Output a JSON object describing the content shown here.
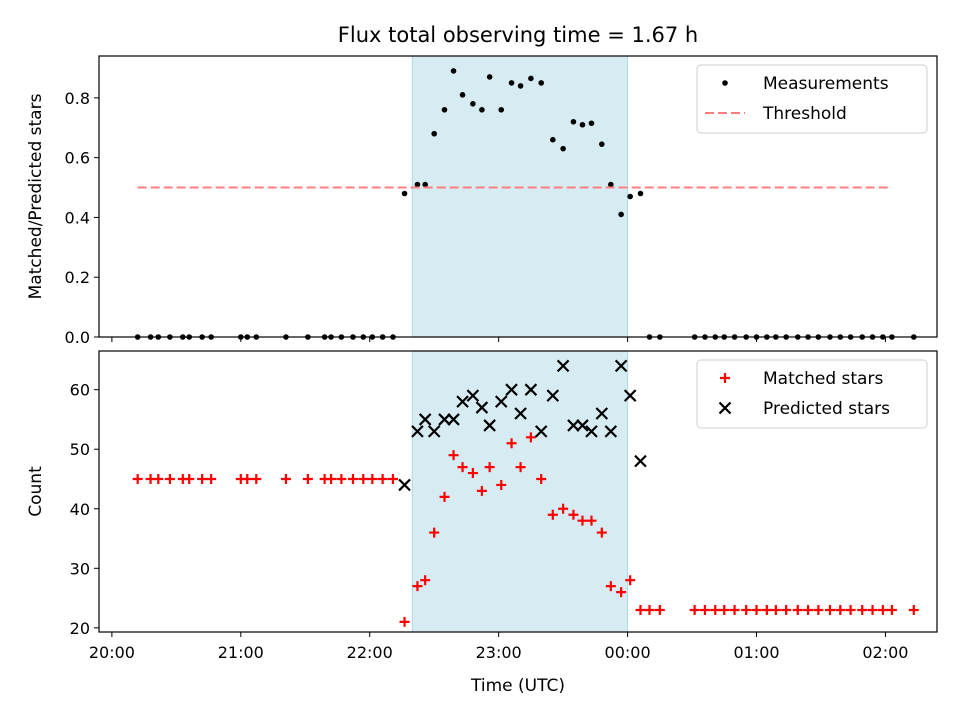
{
  "chart_data": [
    {
      "type": "scatter",
      "title": "Flux total observing time = 1.67 h",
      "xlabel": "",
      "ylabel": "Matched/Predicted stars",
      "ylim": [
        0,
        0.94
      ],
      "yticks": [
        "0.0",
        "0.2",
        "0.4",
        "0.6",
        "0.8"
      ],
      "ytick_values": [
        0,
        0.2,
        0.4,
        0.6,
        0.8
      ],
      "xlim": [
        -0.1,
        6.4
      ],
      "highlight_span": [
        2.33,
        4.0
      ],
      "legend_position": "top-right",
      "series": [
        {
          "name": "Measurements",
          "marker": "dot",
          "color": "#000000",
          "x": [
            0.2,
            0.3,
            0.36,
            0.45,
            0.55,
            0.6,
            0.7,
            0.77,
            1.0,
            1.05,
            1.12,
            1.35,
            1.52,
            1.65,
            1.7,
            1.78,
            1.87,
            1.95,
            2.02,
            2.1,
            2.18,
            2.27,
            2.37,
            2.43,
            2.5,
            2.58,
            2.65,
            2.72,
            2.8,
            2.87,
            2.93,
            3.02,
            3.1,
            3.17,
            3.25,
            3.33,
            3.42,
            3.5,
            3.58,
            3.65,
            3.72,
            3.8,
            3.87,
            3.95,
            4.02,
            4.1,
            4.17,
            4.25,
            4.52,
            4.6,
            4.68,
            4.75,
            4.83,
            4.92,
            5.0,
            5.08,
            5.15,
            5.23,
            5.32,
            5.4,
            5.48,
            5.57,
            5.65,
            5.73,
            5.82,
            5.9,
            5.98,
            6.05,
            6.22
          ],
          "y": [
            0,
            0,
            0,
            0,
            0,
            0,
            0,
            0,
            0,
            0,
            0,
            0,
            0,
            0,
            0,
            0,
            0,
            0,
            0,
            0,
            0,
            0.48,
            0.51,
            0.51,
            0.68,
            0.76,
            0.89,
            0.81,
            0.78,
            0.76,
            0.87,
            0.76,
            0.85,
            0.84,
            0.865,
            0.85,
            0.66,
            0.63,
            0.72,
            0.71,
            0.715,
            0.645,
            0.51,
            0.41,
            0.47,
            0.48,
            0,
            0,
            0,
            0,
            0,
            0,
            0,
            0,
            0,
            0,
            0,
            0,
            0,
            0,
            0,
            0,
            0,
            0,
            0,
            0,
            0,
            0,
            0
          ]
        },
        {
          "name": "Threshold",
          "marker": "dashed-line",
          "color": "#ff7f7f",
          "x": [
            0.2,
            6.05
          ],
          "y": [
            0.5,
            0.5
          ]
        }
      ]
    },
    {
      "type": "scatter",
      "title": "",
      "xlabel": "Time (UTC)",
      "ylabel": "Count",
      "ylim": [
        19.3,
        66.5
      ],
      "yticks": [
        "20",
        "30",
        "40",
        "50",
        "60"
      ],
      "ytick_values": [
        20,
        30,
        40,
        50,
        60
      ],
      "xlim": [
        -0.1,
        6.4
      ],
      "xticks": [
        "20:00",
        "21:00",
        "22:00",
        "23:00",
        "00:00",
        "01:00",
        "02:00"
      ],
      "xtick_values": [
        0,
        1,
        2,
        3,
        4,
        5,
        6
      ],
      "highlight_span": [
        2.33,
        4.0
      ],
      "legend_position": "top-right",
      "series": [
        {
          "name": "Matched stars",
          "marker": "plus",
          "color": "#ff0000",
          "x": [
            0.2,
            0.3,
            0.36,
            0.45,
            0.55,
            0.6,
            0.7,
            0.77,
            1.0,
            1.05,
            1.12,
            1.35,
            1.52,
            1.65,
            1.7,
            1.78,
            1.87,
            1.95,
            2.02,
            2.1,
            2.18,
            2.27,
            2.37,
            2.43,
            2.5,
            2.58,
            2.65,
            2.72,
            2.8,
            2.87,
            2.93,
            3.02,
            3.1,
            3.17,
            3.25,
            3.33,
            3.42,
            3.5,
            3.58,
            3.65,
            3.72,
            3.8,
            3.87,
            3.95,
            4.02,
            4.1,
            4.17,
            4.25,
            4.52,
            4.6,
            4.68,
            4.75,
            4.83,
            4.92,
            5.0,
            5.08,
            5.15,
            5.23,
            5.32,
            5.4,
            5.48,
            5.57,
            5.65,
            5.73,
            5.82,
            5.9,
            5.98,
            6.05,
            6.22
          ],
          "y": [
            45,
            45,
            45,
            45,
            45,
            45,
            45,
            45,
            45,
            45,
            45,
            45,
            45,
            45,
            45,
            45,
            45,
            45,
            45,
            45,
            45,
            21,
            27,
            28,
            36,
            42,
            49,
            47,
            46,
            43,
            47,
            44,
            51,
            47,
            52,
            45,
            39,
            40,
            39,
            38,
            38,
            36,
            27,
            26,
            28,
            23,
            23,
            23,
            23,
            23,
            23,
            23,
            23,
            23,
            23,
            23,
            23,
            23,
            23,
            23,
            23,
            23,
            23,
            23,
            23,
            23,
            23,
            23,
            23
          ]
        },
        {
          "name": "Predicted stars",
          "marker": "x",
          "color": "#000000",
          "x": [
            2.27,
            2.37,
            2.43,
            2.5,
            2.58,
            2.65,
            2.72,
            2.8,
            2.87,
            2.93,
            3.02,
            3.1,
            3.17,
            3.25,
            3.33,
            3.42,
            3.5,
            3.58,
            3.65,
            3.72,
            3.8,
            3.87,
            3.95,
            4.02,
            4.1
          ],
          "y": [
            44,
            53,
            55,
            53,
            55,
            55,
            58,
            59,
            57,
            54,
            58,
            60,
            56,
            60,
            53,
            59,
            64,
            54,
            54,
            53,
            56,
            53,
            64,
            59,
            48
          ]
        }
      ]
    }
  ]
}
